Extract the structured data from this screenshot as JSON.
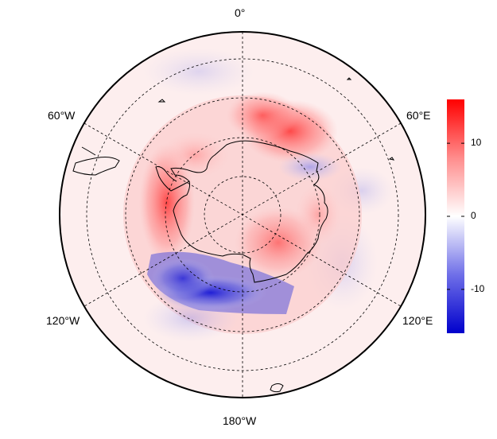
{
  "map": {
    "projection": "south-polar-stereographic",
    "longitude_labels": {
      "top": "0°",
      "upper_left": "60°W",
      "upper_right": "60°E",
      "lower_left": "120°W",
      "lower_right": "120°E",
      "bottom": "180°W"
    }
  },
  "colorbar": {
    "min": -16,
    "max": 16,
    "ticks": [
      {
        "value": 10,
        "label": "10"
      },
      {
        "value": 0,
        "label": "0"
      },
      {
        "value": -10,
        "label": "-10"
      }
    ],
    "colors": {
      "low": "#0000cc",
      "mid": "#ffffff",
      "high": "#ff0000"
    }
  },
  "colors": {
    "coastline": "#000000",
    "graticule": "#000000",
    "background": "#ffffff"
  }
}
